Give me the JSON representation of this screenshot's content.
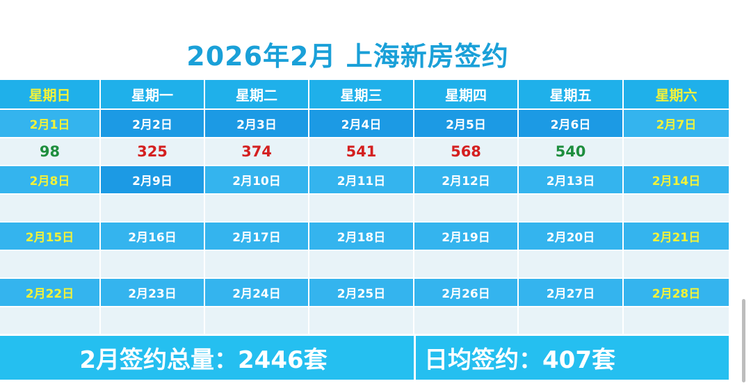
{
  "title": "2026年2月 上海新房签约",
  "weekdays": [
    "星期日",
    "星期一",
    "星期二",
    "星期三",
    "星期四",
    "星期五",
    "星期六"
  ],
  "weeks": [
    {
      "dates": [
        "2月1日",
        "2月2日",
        "2月3日",
        "2月4日",
        "2月5日",
        "2月6日",
        "2月7日"
      ],
      "values": [
        "98",
        "325",
        "374",
        "541",
        "568",
        "540",
        ""
      ]
    },
    {
      "dates": [
        "2月8日",
        "2月9日",
        "2月10日",
        "2月11日",
        "2月12日",
        "2月13日",
        "2月14日"
      ],
      "values": [
        "",
        "",
        "",
        "",
        "",
        "",
        ""
      ]
    },
    {
      "dates": [
        "2月15日",
        "2月16日",
        "2月17日",
        "2月18日",
        "2月19日",
        "2月20日",
        "2月21日"
      ],
      "values": [
        "",
        "",
        "",
        "",
        "",
        "",
        ""
      ]
    },
    {
      "dates": [
        "2月22日",
        "2月23日",
        "2月24日",
        "2月25日",
        "2月26日",
        "2月27日",
        "2月28日"
      ],
      "values": [
        "",
        "",
        "",
        "",
        "",
        "",
        ""
      ]
    }
  ],
  "summary": {
    "total": "2月签约总量：2446套",
    "daily_avg": "日均签约：407套"
  },
  "colors": {
    "title": "#1aa0d8",
    "header_bg": "#1fb0ea",
    "weekend_text": "#f2f23a",
    "value_up": "#d42020",
    "value_down": "#1e8e3e",
    "footer_bg": "#25bff0"
  }
}
